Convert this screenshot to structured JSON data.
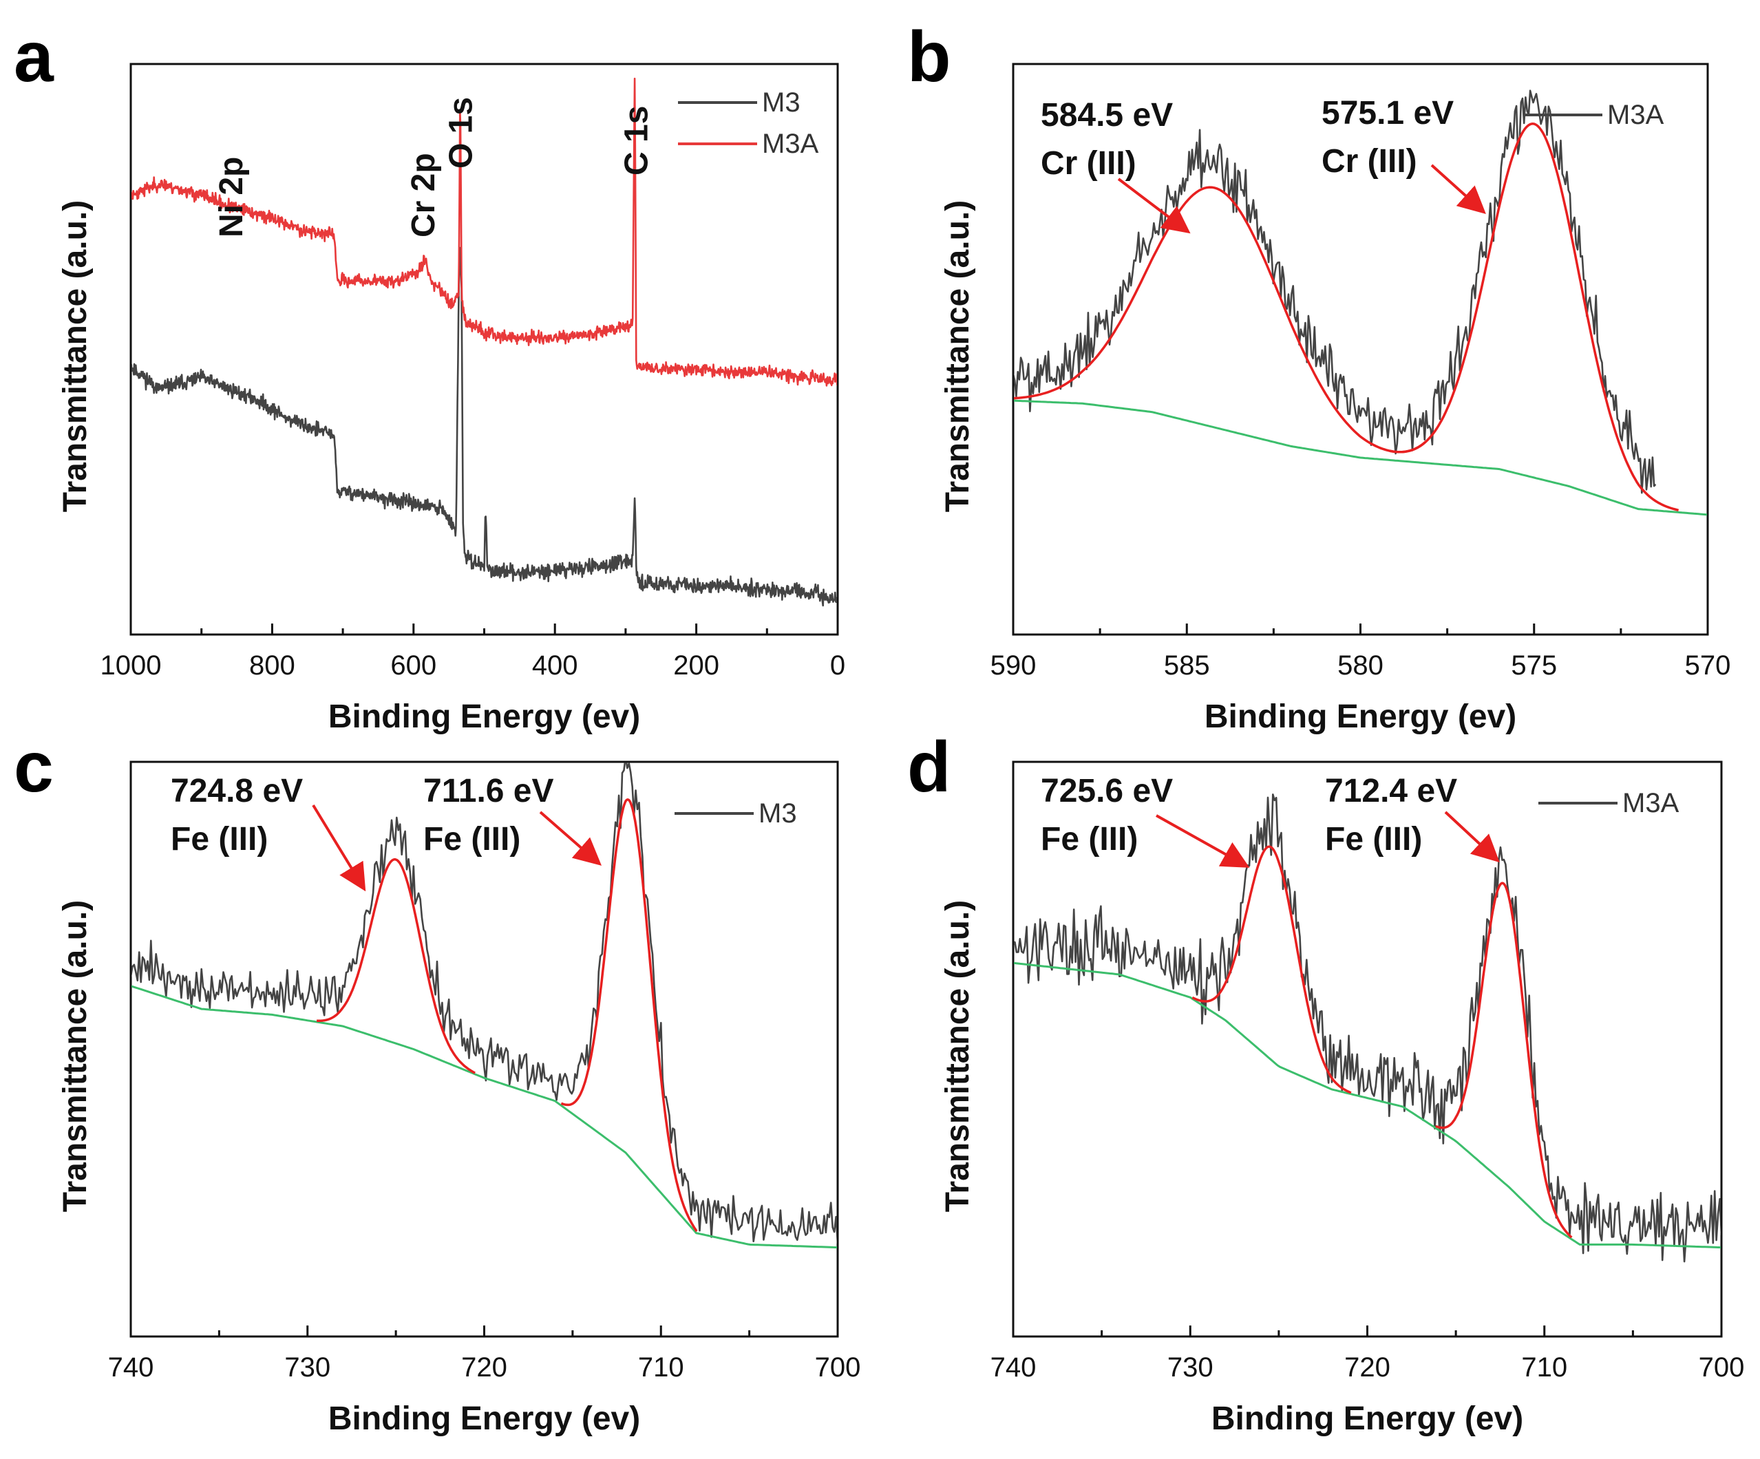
{
  "colors": {
    "m3": "#444444",
    "m3a": "#e8393a",
    "fit": "#e82020",
    "background": "#3cbe6c",
    "arrow": "#e82020"
  },
  "chart_data": [
    {
      "panel": "a",
      "type": "line",
      "xlabel": "Binding Energy (ev)",
      "ylabel": "Transmittance (a.u.)",
      "xlim": [
        1000,
        0
      ],
      "ylim": [
        0,
        100
      ],
      "xticks": [
        1000,
        800,
        600,
        400,
        200,
        0
      ],
      "legend": [
        "M3",
        "M3A"
      ],
      "legend_position": "top-right",
      "annotations": [
        "Ni 2p",
        "Cr 2p",
        "O 1s",
        "C 1s"
      ],
      "series": [
        {
          "name": "M3",
          "color": "#444444",
          "noise": 2.5,
          "seed": 11,
          "x": [
            1000,
            960,
            900,
            860,
            820,
            780,
            740,
            712,
            708,
            690,
            650,
            600,
            560,
            540,
            536,
            534,
            532,
            530,
            528,
            520,
            500,
            498,
            496,
            490,
            460,
            420,
            380,
            340,
            300,
            290,
            287,
            285,
            283,
            280,
            250,
            200,
            150,
            100,
            60,
            30,
            0
          ],
          "y": [
            47,
            43,
            45,
            43,
            41,
            38,
            36,
            35,
            25,
            25,
            24,
            23,
            22,
            18,
            60,
            69,
            60,
            20,
            14,
            13,
            12,
            23,
            12,
            11,
            11,
            11,
            11.5,
            12,
            12.5,
            13,
            25,
            13,
            9,
            9,
            9,
            8.5,
            8.5,
            8,
            7.5,
            7,
            6
          ]
        },
        {
          "name": "M3A",
          "color": "#e8393a",
          "noise": 2.2,
          "seed": 23,
          "x": [
            1000,
            960,
            900,
            860,
            800,
            760,
            712,
            708,
            680,
            620,
            590,
            585,
            580,
            575,
            560,
            545,
            536,
            534,
            532,
            530,
            526,
            500,
            460,
            420,
            380,
            340,
            310,
            295,
            290,
            287,
            285,
            283,
            280,
            250,
            200,
            150,
            100,
            60,
            30,
            0
          ],
          "y": [
            77,
            79,
            77,
            75,
            73,
            71,
            70,
            62,
            62,
            62,
            64,
            66,
            64,
            62,
            60,
            58,
            60,
            97,
            60,
            57,
            55,
            53,
            52,
            52,
            52,
            53,
            54,
            54,
            55,
            100,
            48,
            47,
            47,
            46.5,
            46.5,
            46,
            46,
            45.5,
            45,
            44.5
          ]
        }
      ]
    },
    {
      "panel": "b",
      "type": "line",
      "xlabel": "Binding Energy (ev)",
      "ylabel": "Transmittance (a.u.)",
      "xlim": [
        590,
        570
      ],
      "ylim": [
        0,
        100
      ],
      "xticks": [
        590,
        585,
        580,
        575,
        570
      ],
      "legend": [
        "M3A"
      ],
      "legend_position": "top-right",
      "peaks": [
        {
          "energy_label": "584.5 eV",
          "state_label": "Cr (III)",
          "center": 584.2,
          "height": 42,
          "width": 1.9
        },
        {
          "energy_label": "575.1 eV",
          "state_label": "Cr (III)",
          "center": 575.0,
          "height": 62,
          "width": 1.3
        }
      ],
      "background": {
        "x": [
          590,
          588,
          586,
          584,
          582,
          580,
          578,
          576,
          574,
          572,
          570
        ],
        "y": [
          41,
          40.5,
          39,
          36,
          33,
          31,
          30,
          29,
          26,
          22,
          21
        ]
      },
      "raw": {
        "name": "M3A",
        "noise": 5,
        "seed": 5,
        "x_range": [
          590,
          571.5
        ]
      }
    },
    {
      "panel": "c",
      "type": "line",
      "xlabel": "Binding Energy (ev)",
      "ylabel": "Transmittance (a.u.)",
      "xlim": [
        740,
        700
      ],
      "ylim": [
        0,
        100
      ],
      "xticks": [
        740,
        730,
        720,
        710,
        700
      ],
      "legend": [
        "M3"
      ],
      "legend_position": "top-right",
      "peaks": [
        {
          "energy_label": "724.8 eV",
          "state_label": "Fe (III)",
          "center": 725.0,
          "height": 32,
          "width": 1.4
        },
        {
          "energy_label": "711.6 eV",
          "state_label": "Fe (III)",
          "center": 711.8,
          "height": 62,
          "width": 1.2
        }
      ],
      "background": {
        "x": [
          740,
          736,
          732,
          728,
          724,
          720,
          716,
          712,
          710,
          708,
          705,
          700
        ],
        "y": [
          61,
          57,
          56,
          54,
          50,
          45,
          41,
          32,
          25,
          18,
          16,
          15.5
        ]
      },
      "raw": {
        "name": "M3",
        "noise": 4,
        "seed": 9,
        "x_range": [
          740,
          700
        ]
      }
    },
    {
      "panel": "d",
      "type": "line",
      "xlabel": "Binding Energy (ev)",
      "ylabel": "Transmittance (a.u.)",
      "xlim": [
        740,
        700
      ],
      "ylim": [
        0,
        100
      ],
      "xticks": [
        740,
        730,
        720,
        710,
        700
      ],
      "legend": [
        "M3A"
      ],
      "legend_position": "top-right",
      "peaks": [
        {
          "energy_label": "725.6 eV",
          "state_label": "Fe (III)",
          "center": 725.4,
          "height": 37,
          "width": 1.4
        },
        {
          "energy_label": "712.4 eV",
          "state_label": "Fe (III)",
          "center": 712.3,
          "height": 52,
          "width": 1.2
        }
      ],
      "background": {
        "x": [
          740,
          734,
          730,
          728,
          725,
          722,
          718,
          715,
          712,
          710,
          708,
          705,
          700
        ],
        "y": [
          65,
          63,
          59,
          55,
          47,
          43,
          40,
          34,
          26,
          20,
          16,
          16,
          15.5
        ]
      },
      "raw": {
        "name": "M3A",
        "noise": 6,
        "seed": 17,
        "x_range": [
          740,
          700
        ]
      }
    }
  ]
}
